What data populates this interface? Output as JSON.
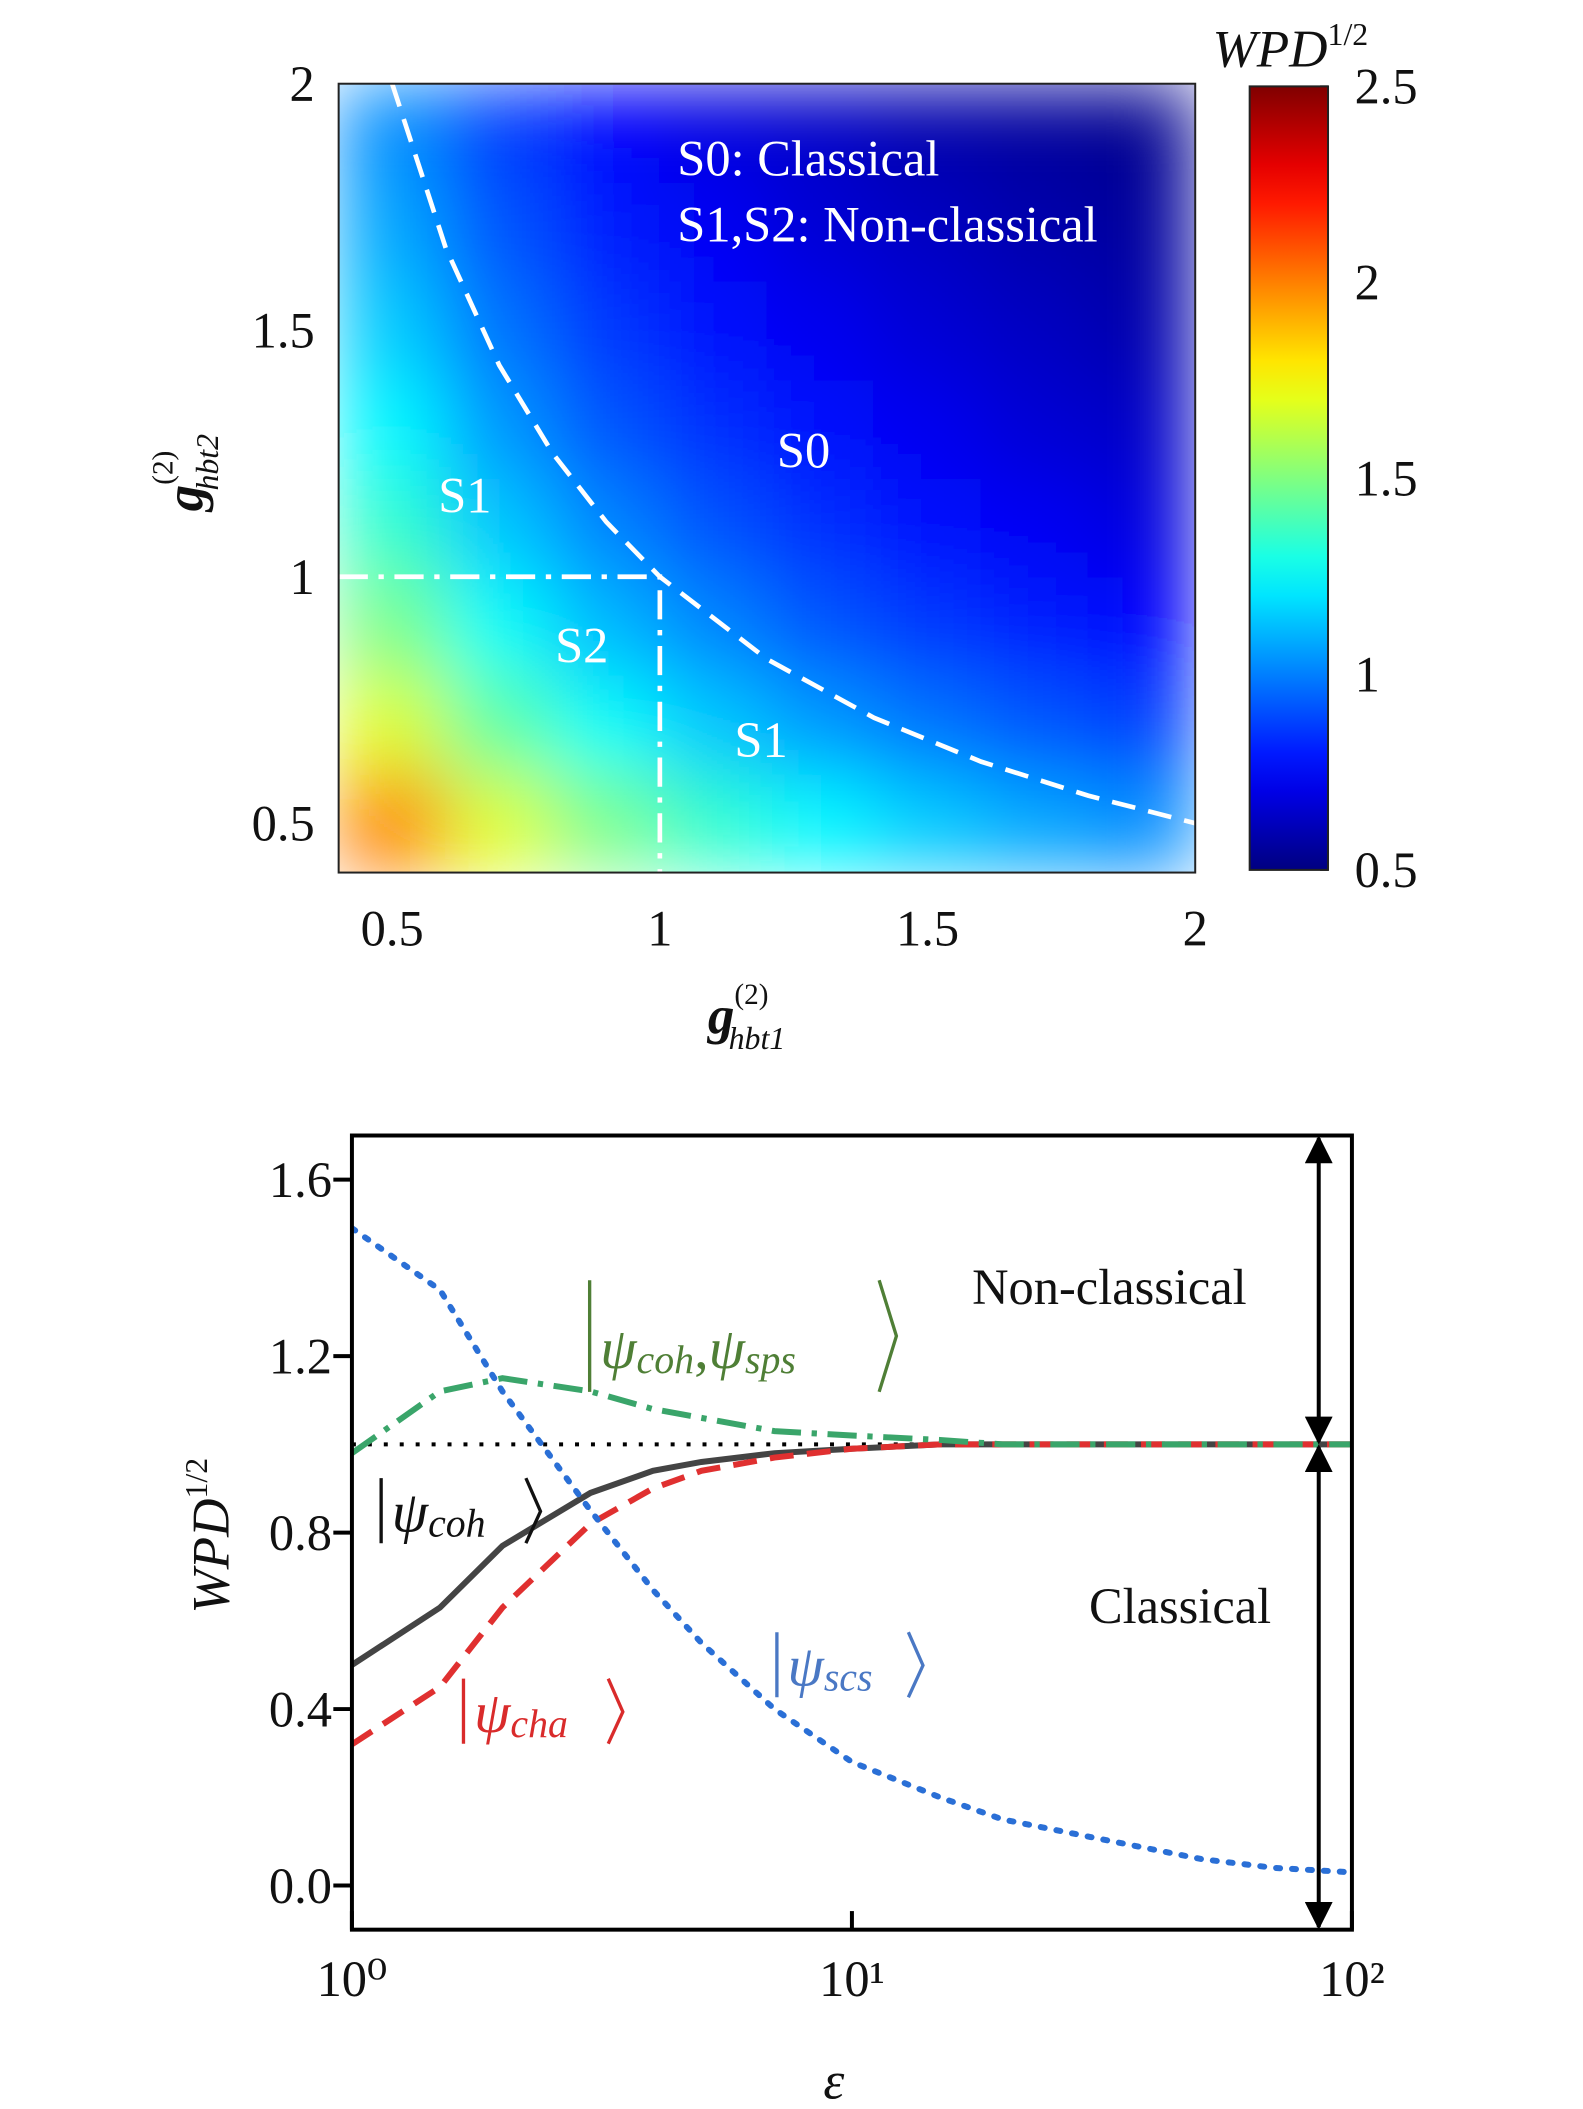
{
  "chart_data": [
    {
      "type": "heatmap",
      "x_label": {
        "base": "g",
        "sup": "(2)",
        "sub": "hbt1"
      },
      "y_label": {
        "base": "g",
        "sup": "(2)",
        "sub": "hbt2"
      },
      "x": [
        0.5,
        0.7,
        0.9,
        1.1,
        1.3,
        1.5,
        1.7,
        1.9
      ],
      "y": [
        0.5,
        0.7,
        0.9,
        1.1,
        1.3,
        1.5,
        1.7,
        1.9
      ],
      "z": [
        [
          2.0,
          1.69,
          1.49,
          1.35,
          1.24,
          1.15,
          1.08,
          1.03
        ],
        [
          1.69,
          1.43,
          1.26,
          1.14,
          1.05,
          0.98,
          0.92,
          0.87
        ],
        [
          1.49,
          1.26,
          1.11,
          1.01,
          0.92,
          0.86,
          0.81,
          0.76
        ],
        [
          1.35,
          1.14,
          1.01,
          0.91,
          0.84,
          0.78,
          0.73,
          0.69
        ],
        [
          1.24,
          1.05,
          0.92,
          0.84,
          0.77,
          0.72,
          0.67,
          0.64
        ],
        [
          1.15,
          0.98,
          0.86,
          0.78,
          0.72,
          0.67,
          0.63,
          0.59
        ],
        [
          1.08,
          0.92,
          0.81,
          0.73,
          0.67,
          0.63,
          0.59,
          0.56
        ],
        [
          1.03,
          0.87,
          0.76,
          0.69,
          0.64,
          0.59,
          0.56,
          0.53
        ]
      ],
      "xlim": [
        0.4,
        2
      ],
      "xticks": [
        0.5,
        1,
        1.5,
        2
      ],
      "ylim": [
        0.4,
        2
      ],
      "yticks": [
        0.5,
        1,
        1.5,
        2
      ],
      "colormap": "jet",
      "colorbar_label": {
        "base": "WPD",
        "sup": "1/2"
      },
      "clim": [
        0.5,
        2.5
      ],
      "cticks": [
        0.5,
        1,
        1.5,
        2,
        2.5
      ],
      "lines": [
        {
          "style": "dashed",
          "color": "#ffffff",
          "x": [
            0.5,
            0.6,
            0.7,
            0.8,
            0.9,
            1,
            1.2,
            1.4,
            1.6,
            1.8,
            2
          ],
          "y": [
            2,
            1.667,
            1.429,
            1.25,
            1.111,
            1,
            0.833,
            0.714,
            0.625,
            0.556,
            0.5
          ]
        },
        {
          "style": "dashdot",
          "color": "#ffffff",
          "x": [
            0.4,
            1,
            1
          ],
          "y": [
            1,
            1,
            0.4
          ]
        }
      ],
      "annotations": [
        "S0: Classical",
        "S1,S2: Non-classical",
        "S0",
        "S1",
        "S2",
        "S1"
      ]
    },
    {
      "type": "line",
      "x_scale": "log",
      "x_label": "ε",
      "y_label": {
        "base": "WPD",
        "sup": "1/2"
      },
      "x": [
        1,
        1.5,
        2,
        3,
        4,
        5,
        7,
        10,
        15,
        20,
        30,
        50,
        70,
        100
      ],
      "series": [
        {
          "name": "ψ",
          "subscripts": [
            "coh"
          ],
          "color": "#444444",
          "style": "solid",
          "values": [
            0.5,
            0.63,
            0.77,
            0.89,
            0.94,
            0.96,
            0.98,
            0.99,
            1,
            1,
            1,
            1,
            1,
            1
          ]
        },
        {
          "name": "ψ",
          "subscripts": [
            "cha"
          ],
          "color": "#e03030",
          "style": "dashed",
          "values": [
            0.32,
            0.45,
            0.63,
            0.82,
            0.9,
            0.94,
            0.97,
            0.99,
            1,
            1,
            1,
            1,
            1,
            1
          ]
        },
        {
          "name": "ψ",
          "subscripts": [
            "scs"
          ],
          "color": "#2a6fd6",
          "style": "dotted",
          "values": [
            1.49,
            1.35,
            1.12,
            0.85,
            0.67,
            0.55,
            0.4,
            0.28,
            0.2,
            0.15,
            0.11,
            0.06,
            0.04,
            0.03
          ]
        },
        {
          "name": "ψ",
          "subscripts": [
            "coh",
            "sps"
          ],
          "separator": ",",
          "color": "#3aa56a",
          "style": "dashdot",
          "values": [
            0.98,
            1.12,
            1.15,
            1.12,
            1.08,
            1.06,
            1.03,
            1.02,
            1.01,
            1,
            1,
            1,
            1,
            1
          ]
        }
      ],
      "hline": {
        "y": 1,
        "style": "dotted",
        "color": "#000000"
      },
      "xlim": [
        1,
        100
      ],
      "xticks": [
        {
          "value": 1,
          "label": "10⁰"
        },
        {
          "value": 10,
          "label": "10¹"
        },
        {
          "value": 100,
          "label": "10²"
        }
      ],
      "ylim": [
        -0.1,
        1.7
      ],
      "yticks": [
        {
          "value": 0,
          "label": "0.0"
        },
        0.4,
        0.8,
        1.2,
        1.6
      ],
      "annotations": [
        "Non-classical",
        "Classical"
      ]
    }
  ]
}
